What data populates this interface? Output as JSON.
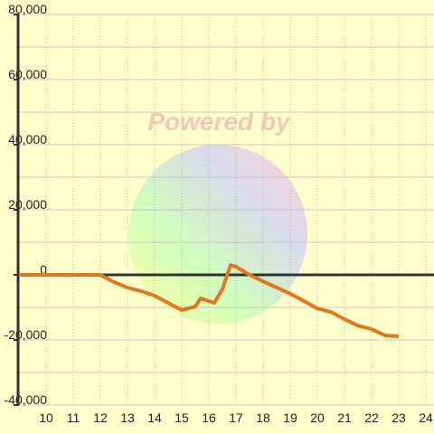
{
  "chart_data": {
    "type": "line",
    "watermark": "Powered by",
    "x": [
      9,
      12,
      12.5,
      13,
      13.5,
      14,
      14.5,
      15,
      15.5,
      15.7,
      16.2,
      16.5,
      16.8,
      17,
      17.5,
      18,
      18.5,
      19,
      19.5,
      20,
      20.5,
      21,
      21.5,
      22,
      22.5,
      23
    ],
    "series": [
      {
        "color": "#e07820",
        "values": [
          0,
          0,
          -2200,
          -3900,
          -5000,
          -6400,
          -8600,
          -10800,
          -9700,
          -7200,
          -8600,
          -4400,
          3000,
          2500,
          0,
          -2000,
          -3900,
          -5800,
          -8000,
          -10300,
          -11400,
          -13600,
          -15600,
          -16700,
          -18600,
          -18900
        ]
      }
    ],
    "xlim": [
      9,
      24.3
    ],
    "xticks": [
      10,
      11,
      12,
      13,
      14,
      15,
      16,
      17,
      18,
      19,
      20,
      21,
      22,
      23,
      24
    ],
    "ylim": [
      -40000,
      80000
    ],
    "yticks": [
      {
        "value": -40000,
        "label": "-40,000"
      },
      {
        "value": -20000,
        "label": "-20,000"
      },
      0,
      {
        "value": 20000,
        "label": "20,000"
      },
      {
        "value": 40000,
        "label": "40,000"
      },
      {
        "value": 60000,
        "label": "60,000"
      },
      {
        "value": 80000,
        "label": "80,000"
      }
    ],
    "grid": true
  }
}
